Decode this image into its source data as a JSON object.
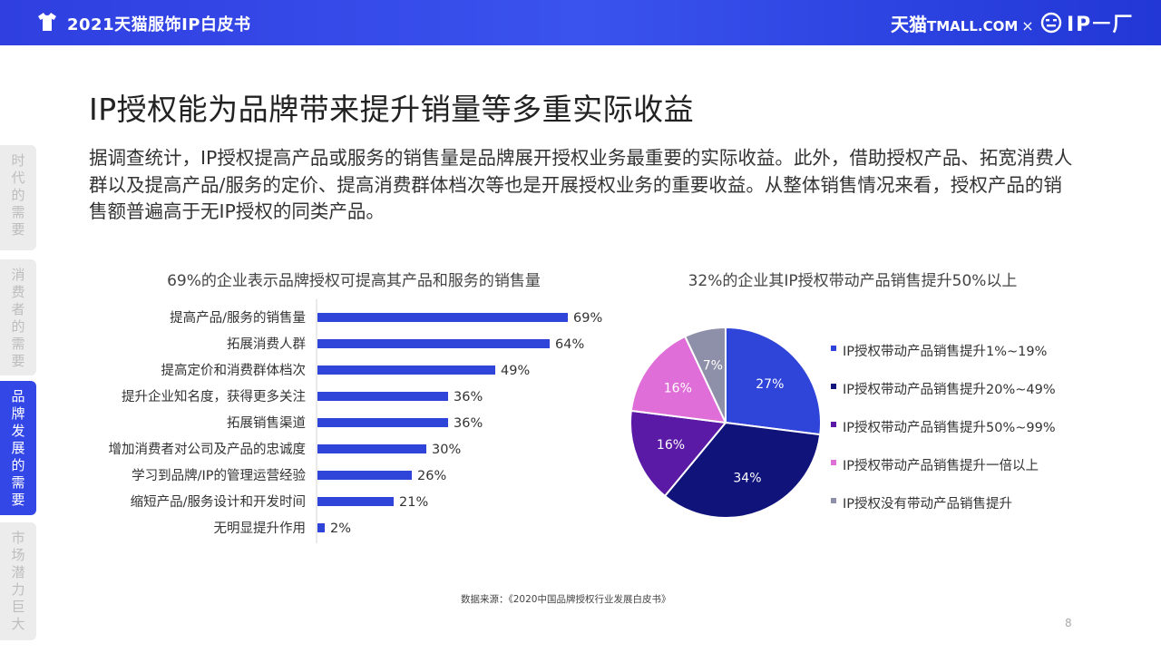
{
  "header": {
    "title": "2021天猫服饰IP白皮书",
    "brand_cn": "天猫",
    "brand_domain": "TMALL.COM",
    "brand_separator": "×",
    "partner_logo": "IP二厂",
    "partner_logo_text": "IPㅡ厂",
    "shirt_icon": "tshirt-icon",
    "accent_color": "#3347e6"
  },
  "sidenav": {
    "items": [
      {
        "label": "时代的需要",
        "active": false
      },
      {
        "label": "消费者的需要",
        "active": false
      },
      {
        "label": "品牌发展的需要",
        "active": true
      },
      {
        "label": "市场潜力巨大",
        "active": false
      }
    ]
  },
  "headline": "IP授权能为品牌带来提升销量等多重实际收益",
  "intro": "据调查统计，IP授权提高产品或服务的销售量是品牌展开授权业务最重要的实际收益。此外，借助授权产品、拓宽消费人群以及提高产品/服务的定价、提高消费群体档次等也是开展授权业务的重要收益。从整体销售情况来看，授权产品的销售额普遍高于无IP授权的同类产品。",
  "chart_data": [
    {
      "type": "bar",
      "orientation": "horizontal",
      "title": "69%的企业表示品牌授权可提高其产品和服务的销售量",
      "categories": [
        "提高产品/服务的销售量",
        "拓展消费人群",
        "提高定价和消费群体档次",
        "提升企业知名度，获得更多关注",
        "拓展销售渠道",
        "增加消费者对公司及产品的忠诚度",
        "学习到品牌/IP的管理运营经验",
        "缩短产品/服务设计和开发时间",
        "无明显提升作用"
      ],
      "values": [
        69,
        64,
        49,
        36,
        36,
        30,
        26,
        21,
        2
      ],
      "value_labels": [
        "69%",
        "64%",
        "49%",
        "36%",
        "36%",
        "30%",
        "26%",
        "21%",
        "2%"
      ],
      "value_unit": "%",
      "xlim": [
        0,
        100
      ],
      "color": "#2f44d8",
      "grid": false
    },
    {
      "type": "pie",
      "title": "32%的企业其IP授权带动产品销售提升50%以上",
      "categories": [
        "IP授权带动产品销售提升1%~19%",
        "IP授权带动产品销售提升20%~49%",
        "IP授权带动产品销售提升50%~99%",
        "IP授权带动产品销售提升一倍以上",
        "IP授权没有带动产品销售提升"
      ],
      "values": [
        27,
        34,
        16,
        16,
        7
      ],
      "value_labels": [
        "27%",
        "34%",
        "16%",
        "16%",
        "7%"
      ],
      "colors": [
        "#2f44d8",
        "#10137a",
        "#5a1aa6",
        "#e06ed9",
        "#8e8fa8"
      ],
      "label_colors": [
        "#ffffff",
        "#ffffff",
        "#ffffff",
        "#ffffff",
        "#ffffff"
      ],
      "legend_position": "right"
    }
  ],
  "footer": {
    "source": "数据来源：《2020中国品牌授权行业发展白皮书》",
    "page": "8"
  }
}
